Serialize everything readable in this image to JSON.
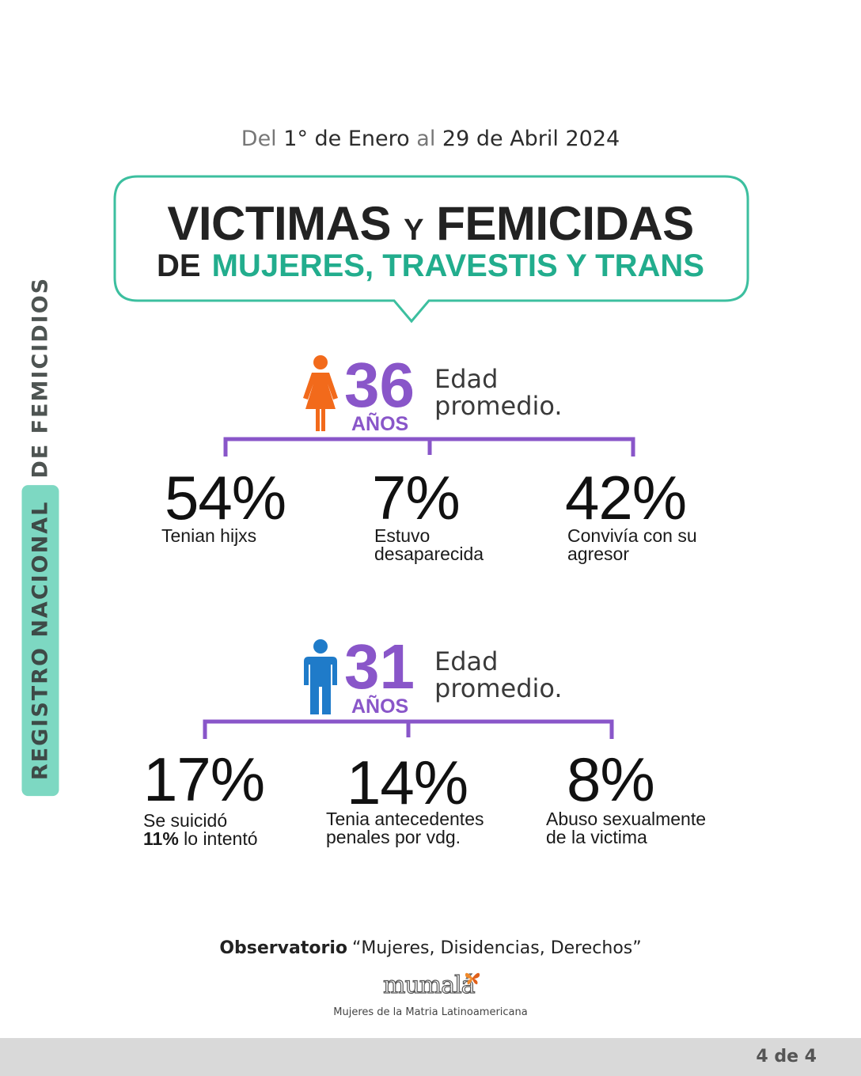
{
  "side_label": {
    "highlight": "REGISTRO NACIONAL",
    "rest": "DE FEMICIDIOS",
    "highlight_color": "#7dd8c2"
  },
  "date_range": {
    "prefix": "Del",
    "start": "1° de Enero",
    "connector": "al",
    "end": "29 de Abril 2024"
  },
  "title": {
    "line1_a": "VICTIMAS",
    "line1_y": "Y",
    "line1_b": "FEMICIDAS",
    "line2_de": "DE",
    "line2_accent": "MUJERES, TRAVESTIS Y TRANS",
    "accent_color": "#22ad8d",
    "bubble_border_color": "#3cbf9f"
  },
  "victims": {
    "icon": "woman-icon",
    "icon_color": "#f26a1b",
    "average_age": "36",
    "age_unit": "AÑOS",
    "age_label_line1": "Edad",
    "age_label_line2": "promedio.",
    "stats": [
      {
        "value": "54%",
        "label_line1": "Tenian hijxs",
        "label_line2": ""
      },
      {
        "value": "7%",
        "label_line1": "Estuvo",
        "label_line2": "desaparecida"
      },
      {
        "value": "42%",
        "label_line1": "Convivía con su",
        "label_line2": "agresor"
      }
    ]
  },
  "perpetrators": {
    "icon": "man-icon",
    "icon_color": "#1f7bc9",
    "average_age": "31",
    "age_unit": "AÑOS",
    "age_label_line1": "Edad",
    "age_label_line2": "promedio.",
    "stats": [
      {
        "value": "17%",
        "label_line1": "Se suicidó",
        "label_line2_bold": "11%",
        "label_line2": "lo intentó"
      },
      {
        "value": "14%",
        "label_line1": "Tenia antecedentes",
        "label_line2": "penales por vdg."
      },
      {
        "value": "8%",
        "label_line1": "Abuso sexualmente",
        "label_line2": "de la victima"
      }
    ]
  },
  "accent_purple": "#8956c9",
  "footer": {
    "observatory_bold": "Observatorio",
    "observatory_name": "“Mujeres, Disidencias, Derechos”",
    "logo_word": "mumalá",
    "logo_icon": "butterfly-icon",
    "logo_subtitle": "Mujeres de la Matria Latinoamericana",
    "page_indicator": "4 de 4"
  }
}
